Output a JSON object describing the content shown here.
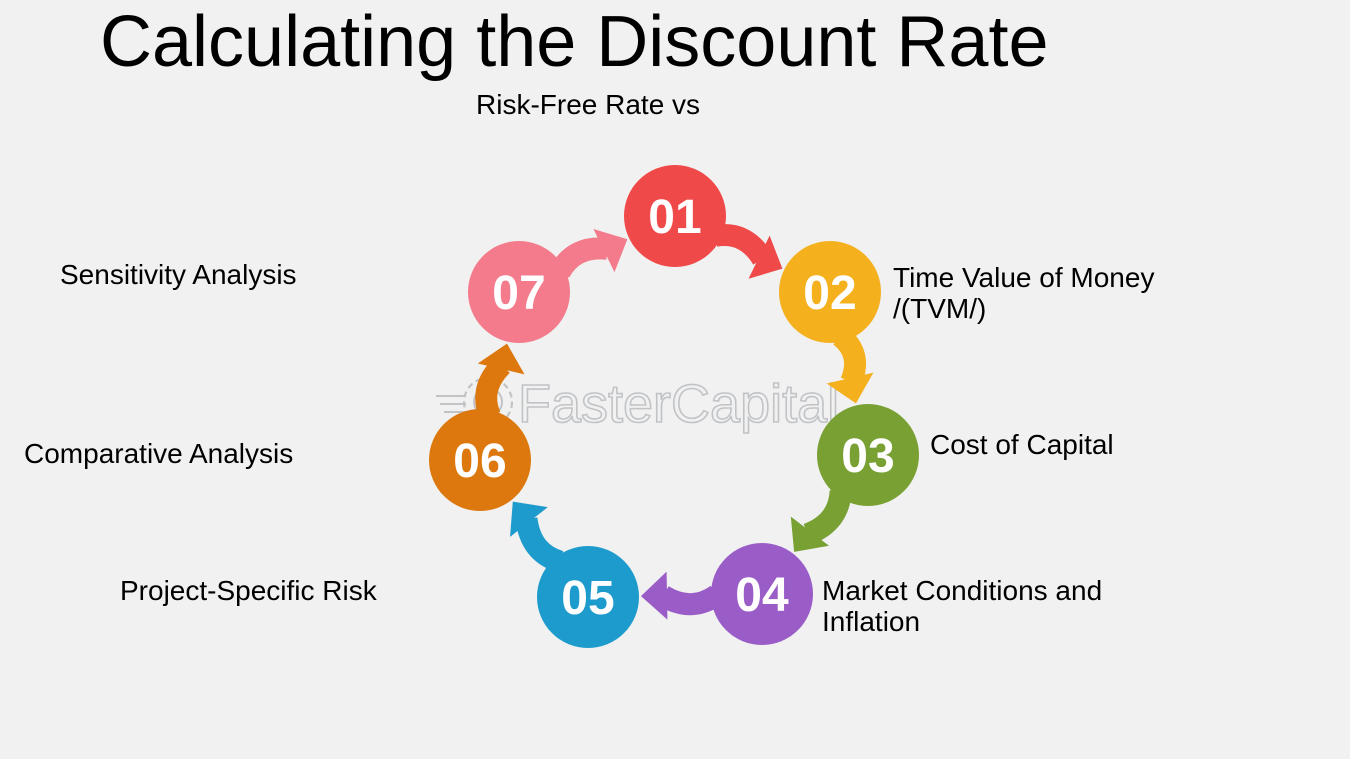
{
  "title": "Calculating the Discount Rate",
  "watermark": {
    "text": "FasterCapital",
    "color": "#b9bcc0"
  },
  "steps": [
    {
      "number": "01",
      "label": "Risk-Free Rate vs",
      "color": "#ef4a49"
    },
    {
      "number": "02",
      "label": "Time Value of Money /(TVM/)",
      "label_lines": [
        "Time Value of Money",
        "/(TVM/)"
      ],
      "color": "#f5b01e"
    },
    {
      "number": "03",
      "label": "Cost of Capital",
      "color": "#78a033"
    },
    {
      "number": "04",
      "label": "Market Conditions and Inflation",
      "label_lines": [
        "Market Conditions and",
        "Inflation"
      ],
      "color": "#9a5cc6"
    },
    {
      "number": "05",
      "label": "Project-Specific Risk",
      "color": "#1d9bcd"
    },
    {
      "number": "06",
      "label": "Comparative Analysis",
      "color": "#dd780e"
    },
    {
      "number": "07",
      "label": "Sensitivity Analysis",
      "color": "#f37b8b"
    }
  ]
}
